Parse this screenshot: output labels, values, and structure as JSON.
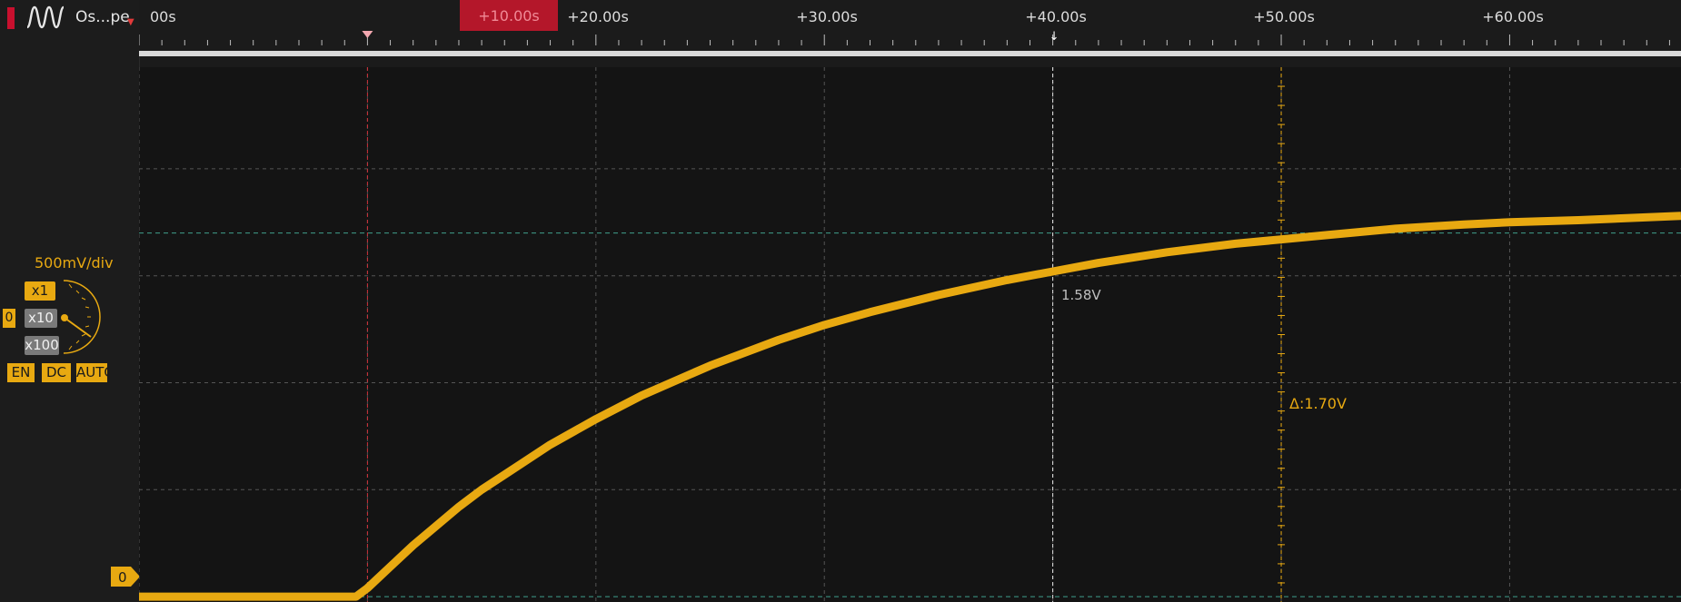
{
  "channel": {
    "name": "Os...pe",
    "color": "#e8a911",
    "volts_per_div": "500mV/div",
    "probe_options": [
      "x1",
      "x10",
      "x100"
    ],
    "selected_probe": "x1",
    "offset_mini": "0",
    "buttons": {
      "enable": "EN",
      "coupling": "DC",
      "range": "AUTO"
    },
    "zero_label": "0",
    "icon": "sine-wave-icon"
  },
  "time_axis": {
    "cursor_label": "+10.00s",
    "partial_label": "00s",
    "tick_labels": [
      "+20.00s",
      "+30.00s",
      "+40.00s",
      "+50.00s",
      "+60.00s"
    ]
  },
  "readouts": {
    "cursor_value": "1.58V",
    "delta": "Δ:1.70V"
  },
  "chart_data": {
    "type": "line",
    "x_unit": "s",
    "y_unit": "V",
    "xlim": [
      0,
      67.5
    ],
    "ylim": [
      -0.025,
      2.475
    ],
    "series": [
      {
        "x": [
          0,
          9.5,
          10,
          11,
          12,
          13,
          14,
          15,
          16,
          18,
          20,
          22,
          25,
          28,
          30,
          32,
          35,
          38,
          40,
          42,
          45,
          48,
          50,
          52,
          55,
          58,
          60,
          63,
          67.5
        ],
        "y": [
          0,
          0,
          0.04,
          0.14,
          0.24,
          0.33,
          0.42,
          0.5,
          0.57,
          0.71,
          0.83,
          0.94,
          1.08,
          1.2,
          1.27,
          1.33,
          1.41,
          1.48,
          1.52,
          1.56,
          1.61,
          1.65,
          1.67,
          1.69,
          1.72,
          1.74,
          1.75,
          1.76,
          1.78
        ]
      }
    ],
    "grid": true
  }
}
